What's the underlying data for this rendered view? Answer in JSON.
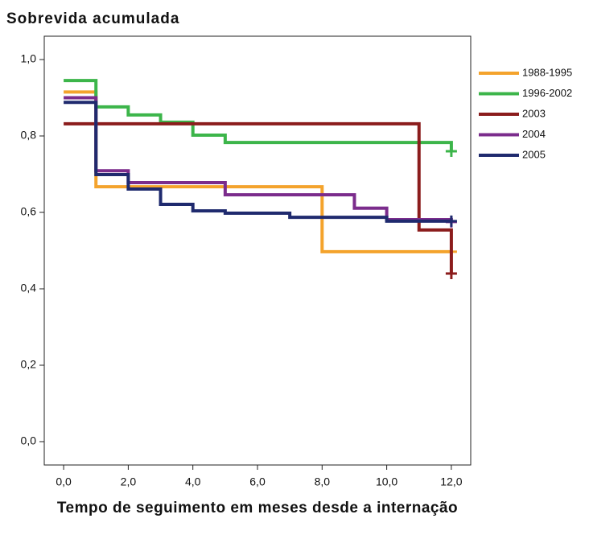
{
  "chart_data": {
    "type": "step",
    "title": "Sobrevida acumulada",
    "xlabel": "Tempo de seguimento em meses desde a internação",
    "xlim": [
      -0.6,
      12.6
    ],
    "ylim": [
      -0.0611,
      1.0611
    ],
    "xticks": [
      {
        "value": 0,
        "label": "0,0"
      },
      {
        "value": 2,
        "label": "2,0"
      },
      {
        "value": 4,
        "label": "4,0"
      },
      {
        "value": 6,
        "label": "6,0"
      },
      {
        "value": 8,
        "label": "8,0"
      },
      {
        "value": 10,
        "label": "10,0"
      },
      {
        "value": 12,
        "label": "12,0"
      }
    ],
    "yticks": [
      {
        "value": 0,
        "label": "0,0"
      },
      {
        "value": 0.2,
        "label": "0,2"
      },
      {
        "value": 0.4,
        "label": "0,4"
      },
      {
        "value": 0.6,
        "label": "0,6"
      },
      {
        "value": 0.8,
        "label": "0,8"
      },
      {
        "value": 1,
        "label": "1,0"
      }
    ],
    "series": [
      {
        "name": "1988-1995",
        "color": "#f4a32c",
        "x": [
          0,
          1,
          8,
          12
        ],
        "values": [
          0.915,
          0.667,
          0.497,
          0.497
        ]
      },
      {
        "name": "1996-2002",
        "color": "#3cb54a",
        "x": [
          0,
          1,
          2,
          3,
          4,
          5,
          12
        ],
        "values": [
          0.945,
          0.876,
          0.855,
          0.836,
          0.802,
          0.783,
          0.76
        ]
      },
      {
        "name": "2003",
        "color": "#8b1c1c",
        "x": [
          0,
          11,
          12
        ],
        "values": [
          0.832,
          0.554,
          0.44
        ]
      },
      {
        "name": "2004",
        "color": "#7b2c8c",
        "x": [
          0,
          1,
          2,
          5,
          9,
          10,
          12
        ],
        "values": [
          0.9,
          0.709,
          0.678,
          0.646,
          0.611,
          0.581,
          0.575
        ]
      },
      {
        "name": "2005",
        "color": "#1f2a6e",
        "x": [
          0,
          1,
          2,
          3,
          4,
          5,
          7,
          10,
          12
        ],
        "values": [
          0.888,
          0.699,
          0.661,
          0.621,
          0.604,
          0.598,
          0.587,
          0.577,
          0.577
        ]
      }
    ]
  }
}
